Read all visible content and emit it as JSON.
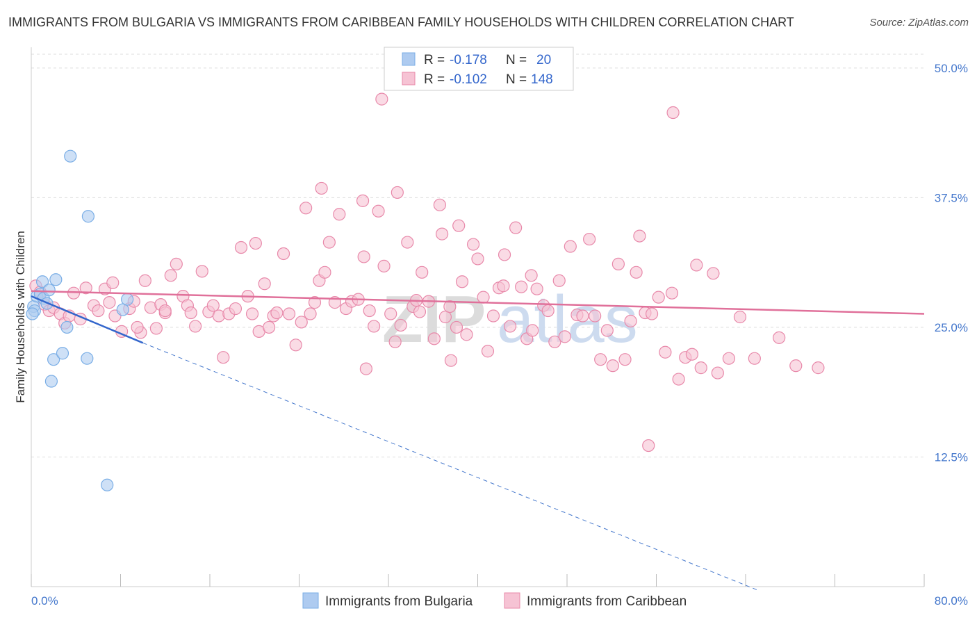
{
  "chart_data": {
    "type": "scatter",
    "title": "IMMIGRANTS FROM BULGARIA VS IMMIGRANTS FROM CARIBBEAN FAMILY HOUSEHOLDS WITH CHILDREN CORRELATION CHART",
    "source": "Source: ZipAtlas.com",
    "xlabel": "",
    "ylabel": "Family Households with Children",
    "xlim": [
      0,
      80
    ],
    "ylim": [
      0,
      52
    ],
    "x_tick_labels": [
      "0.0%",
      "80.0%"
    ],
    "y_ticks": [
      12.5,
      25.0,
      37.5,
      50.0
    ],
    "y_tick_labels": [
      "12.5%",
      "25.0%",
      "37.5%",
      "50.0%"
    ],
    "watermark": {
      "part1": "ZIP",
      "part2": "atlas"
    },
    "legend_box": {
      "rows": [
        {
          "r_label": "R =",
          "r_value": "-0.178",
          "n_label": "N =",
          "n_value": "20"
        },
        {
          "r_label": "R =",
          "r_value": "-0.102",
          "n_label": "N =",
          "n_value": "148"
        }
      ]
    },
    "series": [
      {
        "name": "Immigrants from Bulgaria",
        "color": "#7aaee6",
        "fill": "#aecbf0",
        "trend": {
          "x0": 0.0,
          "y0": 28.0,
          "x1": 10.0,
          "y1": 23.5,
          "x_dash_end": 65.0,
          "y_dash_end": -0.3
        },
        "points": [
          [
            0.2,
            27.0
          ],
          [
            0.3,
            26.6
          ],
          [
            0.5,
            28.0
          ],
          [
            0.8,
            28.2
          ],
          [
            1.0,
            29.4
          ],
          [
            1.1,
            27.8
          ],
          [
            1.4,
            27.3
          ],
          [
            1.6,
            28.6
          ],
          [
            2.2,
            29.6
          ],
          [
            2.0,
            21.9
          ],
          [
            2.8,
            22.5
          ],
          [
            3.2,
            25.0
          ],
          [
            1.8,
            19.8
          ],
          [
            5.0,
            22.0
          ],
          [
            3.5,
            41.5
          ],
          [
            5.1,
            35.7
          ],
          [
            8.2,
            26.7
          ],
          [
            8.6,
            27.7
          ],
          [
            6.8,
            9.8
          ],
          [
            0.1,
            26.3
          ]
        ]
      },
      {
        "name": "Immigrants from Caribbean",
        "color": "#e889aa",
        "fill": "#f6c3d4",
        "trend": {
          "x0": 0.0,
          "y0": 28.5,
          "x1": 80.0,
          "y1": 26.3
        },
        "points": [
          [
            0.4,
            29.0
          ],
          [
            0.8,
            28.4
          ],
          [
            1.2,
            27.2
          ],
          [
            1.6,
            26.6
          ],
          [
            2.0,
            26.9
          ],
          [
            2.6,
            26.3
          ],
          [
            3.0,
            25.4
          ],
          [
            3.4,
            26.1
          ],
          [
            3.8,
            28.3
          ],
          [
            4.4,
            25.8
          ],
          [
            4.9,
            28.8
          ],
          [
            5.6,
            27.1
          ],
          [
            6.0,
            26.6
          ],
          [
            6.6,
            28.7
          ],
          [
            7.0,
            27.4
          ],
          [
            7.5,
            26.1
          ],
          [
            7.3,
            29.3
          ],
          [
            8.1,
            24.6
          ],
          [
            8.8,
            26.8
          ],
          [
            9.2,
            27.5
          ],
          [
            9.8,
            24.5
          ],
          [
            10.2,
            29.5
          ],
          [
            10.7,
            26.9
          ],
          [
            11.2,
            24.9
          ],
          [
            11.6,
            27.2
          ],
          [
            12.0,
            26.4
          ],
          [
            12.5,
            30.0
          ],
          [
            13.0,
            31.1
          ],
          [
            13.6,
            28.0
          ],
          [
            14.0,
            27.1
          ],
          [
            14.3,
            26.4
          ],
          [
            14.7,
            25.1
          ],
          [
            15.3,
            30.4
          ],
          [
            15.9,
            26.5
          ],
          [
            16.3,
            27.1
          ],
          [
            16.8,
            26.1
          ],
          [
            17.2,
            22.1
          ],
          [
            17.7,
            26.3
          ],
          [
            18.3,
            26.8
          ],
          [
            18.8,
            32.7
          ],
          [
            19.4,
            28.0
          ],
          [
            19.8,
            26.3
          ],
          [
            20.4,
            24.6
          ],
          [
            20.9,
            29.2
          ],
          [
            21.3,
            25.0
          ],
          [
            21.7,
            26.1
          ],
          [
            22.0,
            26.4
          ],
          [
            22.6,
            32.1
          ],
          [
            23.1,
            26.3
          ],
          [
            23.7,
            23.3
          ],
          [
            24.2,
            25.5
          ],
          [
            24.6,
            36.5
          ],
          [
            25.0,
            26.3
          ],
          [
            25.4,
            27.4
          ],
          [
            25.8,
            29.5
          ],
          [
            26.3,
            30.3
          ],
          [
            26.7,
            33.2
          ],
          [
            27.2,
            27.4
          ],
          [
            27.6,
            35.9
          ],
          [
            28.2,
            26.8
          ],
          [
            28.7,
            27.5
          ],
          [
            29.3,
            27.7
          ],
          [
            29.8,
            31.8
          ],
          [
            30.3,
            26.6
          ],
          [
            30.7,
            25.1
          ],
          [
            31.1,
            36.2
          ],
          [
            31.6,
            30.9
          ],
          [
            32.2,
            26.3
          ],
          [
            32.6,
            23.6
          ],
          [
            33.1,
            25.2
          ],
          [
            33.7,
            33.2
          ],
          [
            34.2,
            27.0
          ],
          [
            34.8,
            26.5
          ],
          [
            35.0,
            30.3
          ],
          [
            35.6,
            27.5
          ],
          [
            36.1,
            23.9
          ],
          [
            36.6,
            36.8
          ],
          [
            37.1,
            26.0
          ],
          [
            37.6,
            21.8
          ],
          [
            38.1,
            25.0
          ],
          [
            38.6,
            29.4
          ],
          [
            39.0,
            24.3
          ],
          [
            39.6,
            33.0
          ],
          [
            40.0,
            31.6
          ],
          [
            40.5,
            27.9
          ],
          [
            40.9,
            22.7
          ],
          [
            41.4,
            26.1
          ],
          [
            41.9,
            28.8
          ],
          [
            42.4,
            32.0
          ],
          [
            42.9,
            25.1
          ],
          [
            43.4,
            34.6
          ],
          [
            43.9,
            28.9
          ],
          [
            44.4,
            23.9
          ],
          [
            44.9,
            24.7
          ],
          [
            45.3,
            28.7
          ],
          [
            45.9,
            27.1
          ],
          [
            46.3,
            26.6
          ],
          [
            46.9,
            23.6
          ],
          [
            47.3,
            29.5
          ],
          [
            47.8,
            24.1
          ],
          [
            48.3,
            32.8
          ],
          [
            48.9,
            26.2
          ],
          [
            49.4,
            26.1
          ],
          [
            50.0,
            33.5
          ],
          [
            50.5,
            26.1
          ],
          [
            51.0,
            21.9
          ],
          [
            51.6,
            24.7
          ],
          [
            52.1,
            21.3
          ],
          [
            52.6,
            31.1
          ],
          [
            53.2,
            21.9
          ],
          [
            53.7,
            25.6
          ],
          [
            54.2,
            30.3
          ],
          [
            55.0,
            26.4
          ],
          [
            55.6,
            26.3
          ],
          [
            56.2,
            27.9
          ],
          [
            56.8,
            22.6
          ],
          [
            57.4,
            28.3
          ],
          [
            58.0,
            20.0
          ],
          [
            58.6,
            22.1
          ],
          [
            59.2,
            22.4
          ],
          [
            60.0,
            21.1
          ],
          [
            61.5,
            20.6
          ],
          [
            62.5,
            22.0
          ],
          [
            63.5,
            26.0
          ],
          [
            64.8,
            22.0
          ],
          [
            67.0,
            24.0
          ],
          [
            68.5,
            21.3
          ],
          [
            70.5,
            21.1
          ],
          [
            55.3,
            13.6
          ],
          [
            31.4,
            47.0
          ],
          [
            57.5,
            45.7
          ],
          [
            12.0,
            26.6
          ],
          [
            9.5,
            25.0
          ],
          [
            26.0,
            38.4
          ],
          [
            54.5,
            33.8
          ],
          [
            42.3,
            29.0
          ],
          [
            44.8,
            30.0
          ],
          [
            30.0,
            21.0
          ],
          [
            34.5,
            27.6
          ],
          [
            36.8,
            34.0
          ],
          [
            38.3,
            34.8
          ],
          [
            59.6,
            31.0
          ],
          [
            61.1,
            30.2
          ],
          [
            29.7,
            37.2
          ],
          [
            37.5,
            27.0
          ],
          [
            32.8,
            38.0
          ],
          [
            20.1,
            33.1
          ]
        ]
      }
    ]
  }
}
